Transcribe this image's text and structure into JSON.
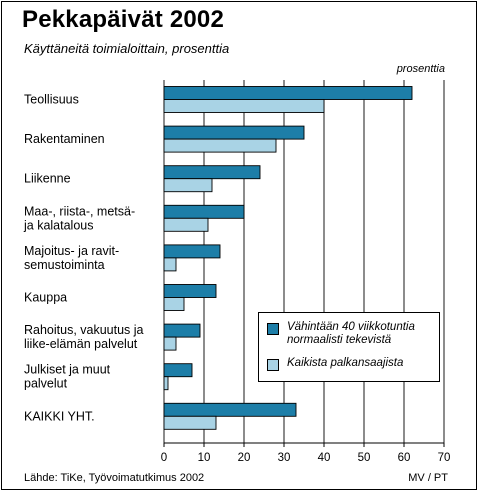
{
  "header": {
    "title": "Pekkapäivät 2002",
    "subtitle": "Käyttäneitä toimialoittain, prosenttia"
  },
  "footer": {
    "source": "Lähde: TiKe, Työvoimatutkimus 2002",
    "credit": "MV / PT"
  },
  "colors": {
    "series_dark": "#1d7ea8",
    "series_light": "#a9d3e5",
    "grid": "#000000"
  },
  "chart_data": {
    "type": "bar",
    "orientation": "horizontal",
    "title": "Pekkapäivät 2002",
    "subtitle": "Käyttäneitä toimialoittain, prosenttia",
    "unit_label": "prosenttia",
    "categories": [
      [
        "Teollisuus"
      ],
      [
        "Rakentaminen"
      ],
      [
        "Liikenne"
      ],
      [
        "Maa-, riista-, metsä-",
        "ja kalatalous"
      ],
      [
        "Majoitus- ja ravit-",
        "semustoiminta"
      ],
      [
        "Kauppa"
      ],
      [
        "Rahoitus, vakuutus ja",
        "liike-elämän palvelut"
      ],
      [
        "Julkiset ja muut",
        "palvelut"
      ],
      [
        "KAIKKI YHT."
      ]
    ],
    "series": [
      {
        "name": [
          "Vähintään 40 viikkotuntia",
          "normaalisti tekevistä"
        ],
        "values": [
          62,
          35,
          24,
          20,
          14,
          13,
          9,
          7,
          33
        ]
      },
      {
        "name": [
          "Kaikista palkansaajista"
        ],
        "values": [
          40,
          28,
          12,
          11,
          3,
          5,
          3,
          1,
          13
        ]
      }
    ],
    "xlim": [
      0,
      70
    ],
    "xticks": [
      0,
      10,
      20,
      30,
      40,
      50,
      60,
      70
    ],
    "legend_position": "bottom-right",
    "grid": "vertical"
  }
}
